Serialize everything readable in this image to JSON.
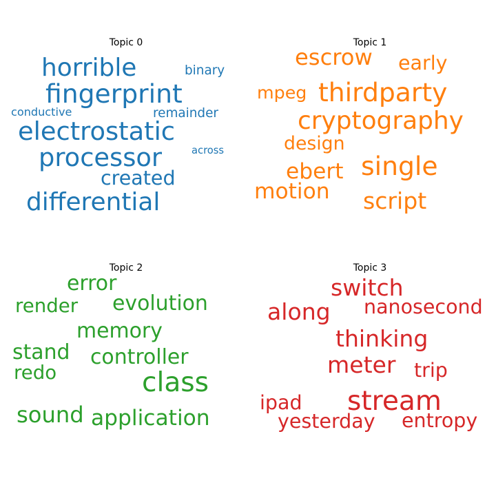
{
  "chart_data": [
    {
      "type": "wordcloud",
      "title": "Topic 0",
      "color": "#1f77b4",
      "words": [
        {
          "text": "horrible",
          "weight": 0.78
        },
        {
          "text": "fingerprint",
          "weight": 0.82
        },
        {
          "text": "electrostatic",
          "weight": 0.8
        },
        {
          "text": "processor",
          "weight": 0.8
        },
        {
          "text": "differential",
          "weight": 0.78
        },
        {
          "text": "created",
          "weight": 0.62
        },
        {
          "text": "binary",
          "weight": 0.4
        },
        {
          "text": "remainder",
          "weight": 0.4
        },
        {
          "text": "conductive",
          "weight": 0.35
        },
        {
          "text": "across",
          "weight": 0.32
        }
      ]
    },
    {
      "type": "wordcloud",
      "title": "Topic 1",
      "color": "#ff7f0e",
      "words": [
        {
          "text": "escrow",
          "weight": 0.7
        },
        {
          "text": "early",
          "weight": 0.62
        },
        {
          "text": "mpeg",
          "weight": 0.55
        },
        {
          "text": "thirdparty",
          "weight": 0.82
        },
        {
          "text": "cryptography",
          "weight": 0.78
        },
        {
          "text": "design",
          "weight": 0.58
        },
        {
          "text": "ebert",
          "weight": 0.68
        },
        {
          "text": "single",
          "weight": 0.82
        },
        {
          "text": "motion",
          "weight": 0.68
        },
        {
          "text": "script",
          "weight": 0.72
        }
      ]
    },
    {
      "type": "wordcloud",
      "title": "Topic 2",
      "color": "#2ca02c",
      "words": [
        {
          "text": "error",
          "weight": 0.65
        },
        {
          "text": "render",
          "weight": 0.6
        },
        {
          "text": "evolution",
          "weight": 0.65
        },
        {
          "text": "memory",
          "weight": 0.65
        },
        {
          "text": "stand",
          "weight": 0.65
        },
        {
          "text": "controller",
          "weight": 0.65
        },
        {
          "text": "redo",
          "weight": 0.6
        },
        {
          "text": "class",
          "weight": 0.85
        },
        {
          "text": "sound",
          "weight": 0.7
        },
        {
          "text": "application",
          "weight": 0.68
        }
      ]
    },
    {
      "type": "wordcloud",
      "title": "Topic 3",
      "color": "#d62728",
      "words": [
        {
          "text": "switch",
          "weight": 0.72
        },
        {
          "text": "along",
          "weight": 0.72
        },
        {
          "text": "nanosecond",
          "weight": 0.62
        },
        {
          "text": "thinking",
          "weight": 0.72
        },
        {
          "text": "meter",
          "weight": 0.72
        },
        {
          "text": "trip",
          "weight": 0.62
        },
        {
          "text": "ipad",
          "weight": 0.62
        },
        {
          "text": "stream",
          "weight": 0.85
        },
        {
          "text": "yesterday",
          "weight": 0.62
        },
        {
          "text": "entropy",
          "weight": 0.62
        }
      ]
    }
  ]
}
